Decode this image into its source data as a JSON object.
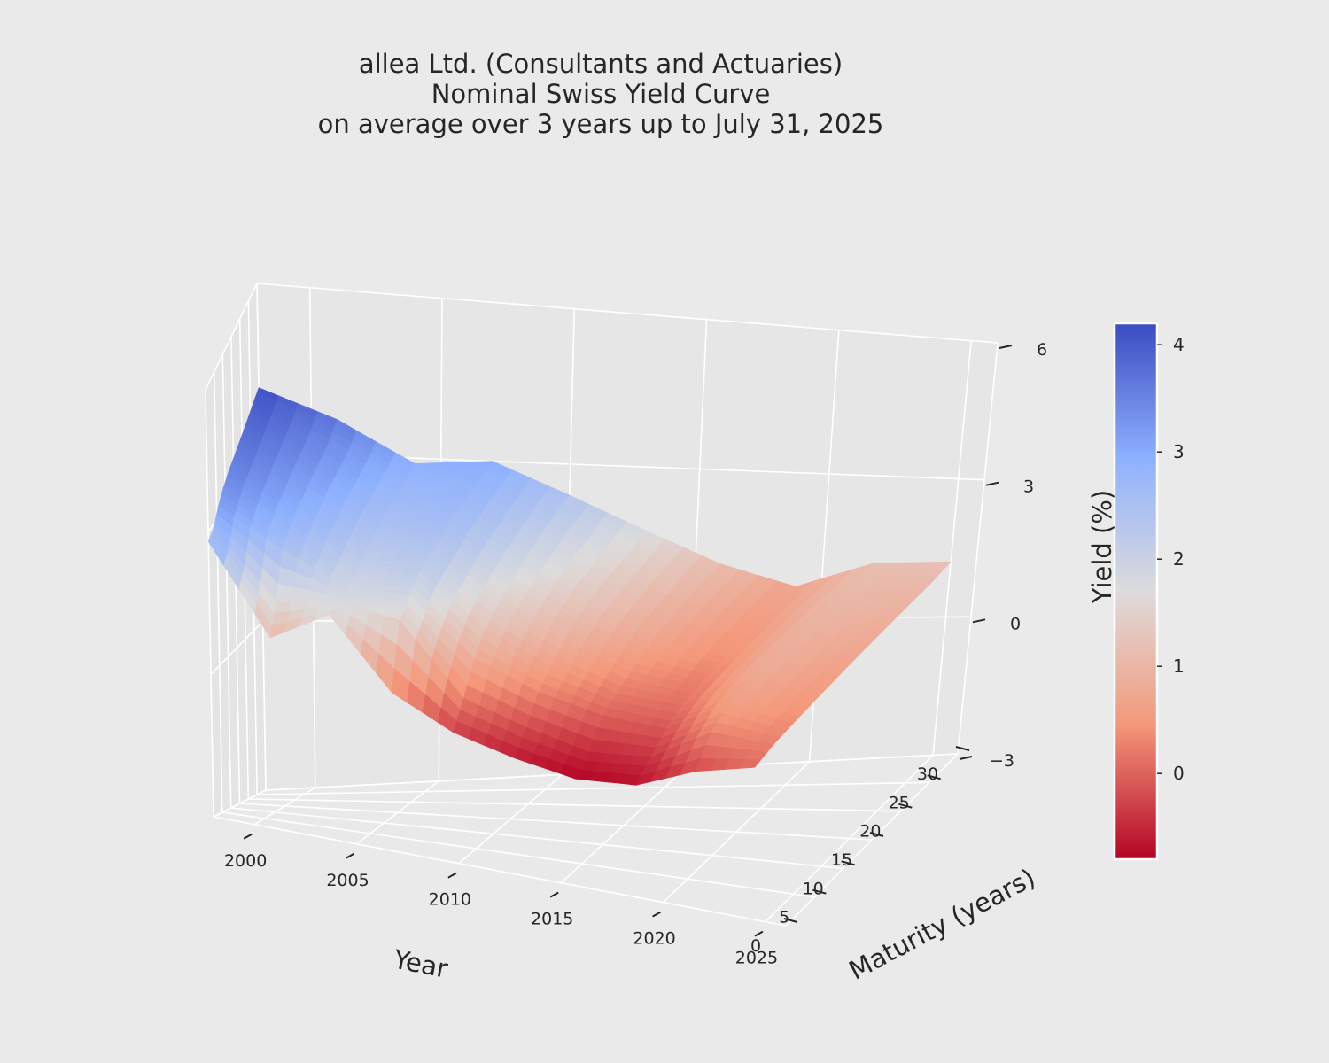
{
  "title": {
    "line1": "allea Ltd. (Consultants and Actuaries)",
    "line2": "Nominal Swiss Yield Curve",
    "line3": "on average over 3 years up to July 31, 2025"
  },
  "colors": {
    "background": "#eaeaea",
    "pane": "#e6e6e6",
    "grid": "#ffffff",
    "text": "#262626",
    "colormap": "coolwarm_r"
  },
  "chart_data": {
    "type": "surface",
    "xlabel": "Year",
    "ylabel": "Maturity (years)",
    "zlabel": "",
    "colorbar_label": "Yield (%)",
    "x_ticks": [
      2000,
      2005,
      2010,
      2015,
      2020,
      2025
    ],
    "y_ticks": [
      0,
      5,
      10,
      15,
      20,
      25,
      30
    ],
    "z_ticks": [
      "−3",
      "0",
      "3",
      "6"
    ],
    "colorbar_ticks": [
      "4",
      "3",
      "2",
      "1",
      "0"
    ],
    "xlim": [
      1998,
      2026
    ],
    "ylim": [
      0,
      30
    ],
    "zlim": [
      -3,
      6
    ],
    "color_range": [
      -0.8,
      4.2
    ],
    "years": [
      1998,
      2001,
      2004,
      2007,
      2010,
      2013,
      2016,
      2019,
      2022,
      2025
    ],
    "maturities": [
      0,
      3,
      6,
      9,
      12,
      15,
      18,
      21,
      24,
      27,
      30
    ],
    "yields": [
      [
        2.8,
        2.9,
        3.2,
        3.4,
        3.55,
        3.65,
        3.75,
        3.85,
        3.95,
        4.05,
        4.15
      ],
      [
        1.0,
        1.6,
        2.5,
        2.7,
        2.9,
        3.0,
        3.15,
        3.25,
        3.35,
        3.45,
        3.65
      ],
      [
        1.7,
        1.8,
        1.9,
        2.0,
        2.2,
        2.35,
        2.5,
        2.6,
        2.7,
        2.8,
        2.9
      ],
      [
        0.3,
        1.6,
        1.9,
        2.2,
        2.3,
        2.45,
        2.6,
        2.7,
        2.8,
        2.9,
        3.0
      ],
      [
        -0.3,
        0.2,
        0.8,
        1.2,
        1.45,
        1.65,
        1.85,
        2.0,
        2.15,
        2.3,
        2.4
      ],
      [
        -0.6,
        -0.2,
        0.3,
        0.6,
        0.9,
        1.1,
        1.3,
        1.4,
        1.5,
        1.6,
        1.75
      ],
      [
        -0.8,
        -0.5,
        0.0,
        0.2,
        0.4,
        0.6,
        0.75,
        0.85,
        0.95,
        1.05,
        1.1
      ],
      [
        -0.7,
        -0.4,
        -0.1,
        0.1,
        0.2,
        0.3,
        0.4,
        0.45,
        0.55,
        0.6,
        0.65
      ],
      [
        -0.2,
        0.3,
        0.6,
        0.75,
        0.85,
        0.9,
        0.95,
        1.0,
        1.05,
        1.1,
        1.15
      ],
      [
        0.1,
        0.25,
        0.35,
        0.45,
        0.55,
        0.65,
        0.75,
        0.85,
        0.95,
        1.05,
        1.2
      ]
    ]
  }
}
